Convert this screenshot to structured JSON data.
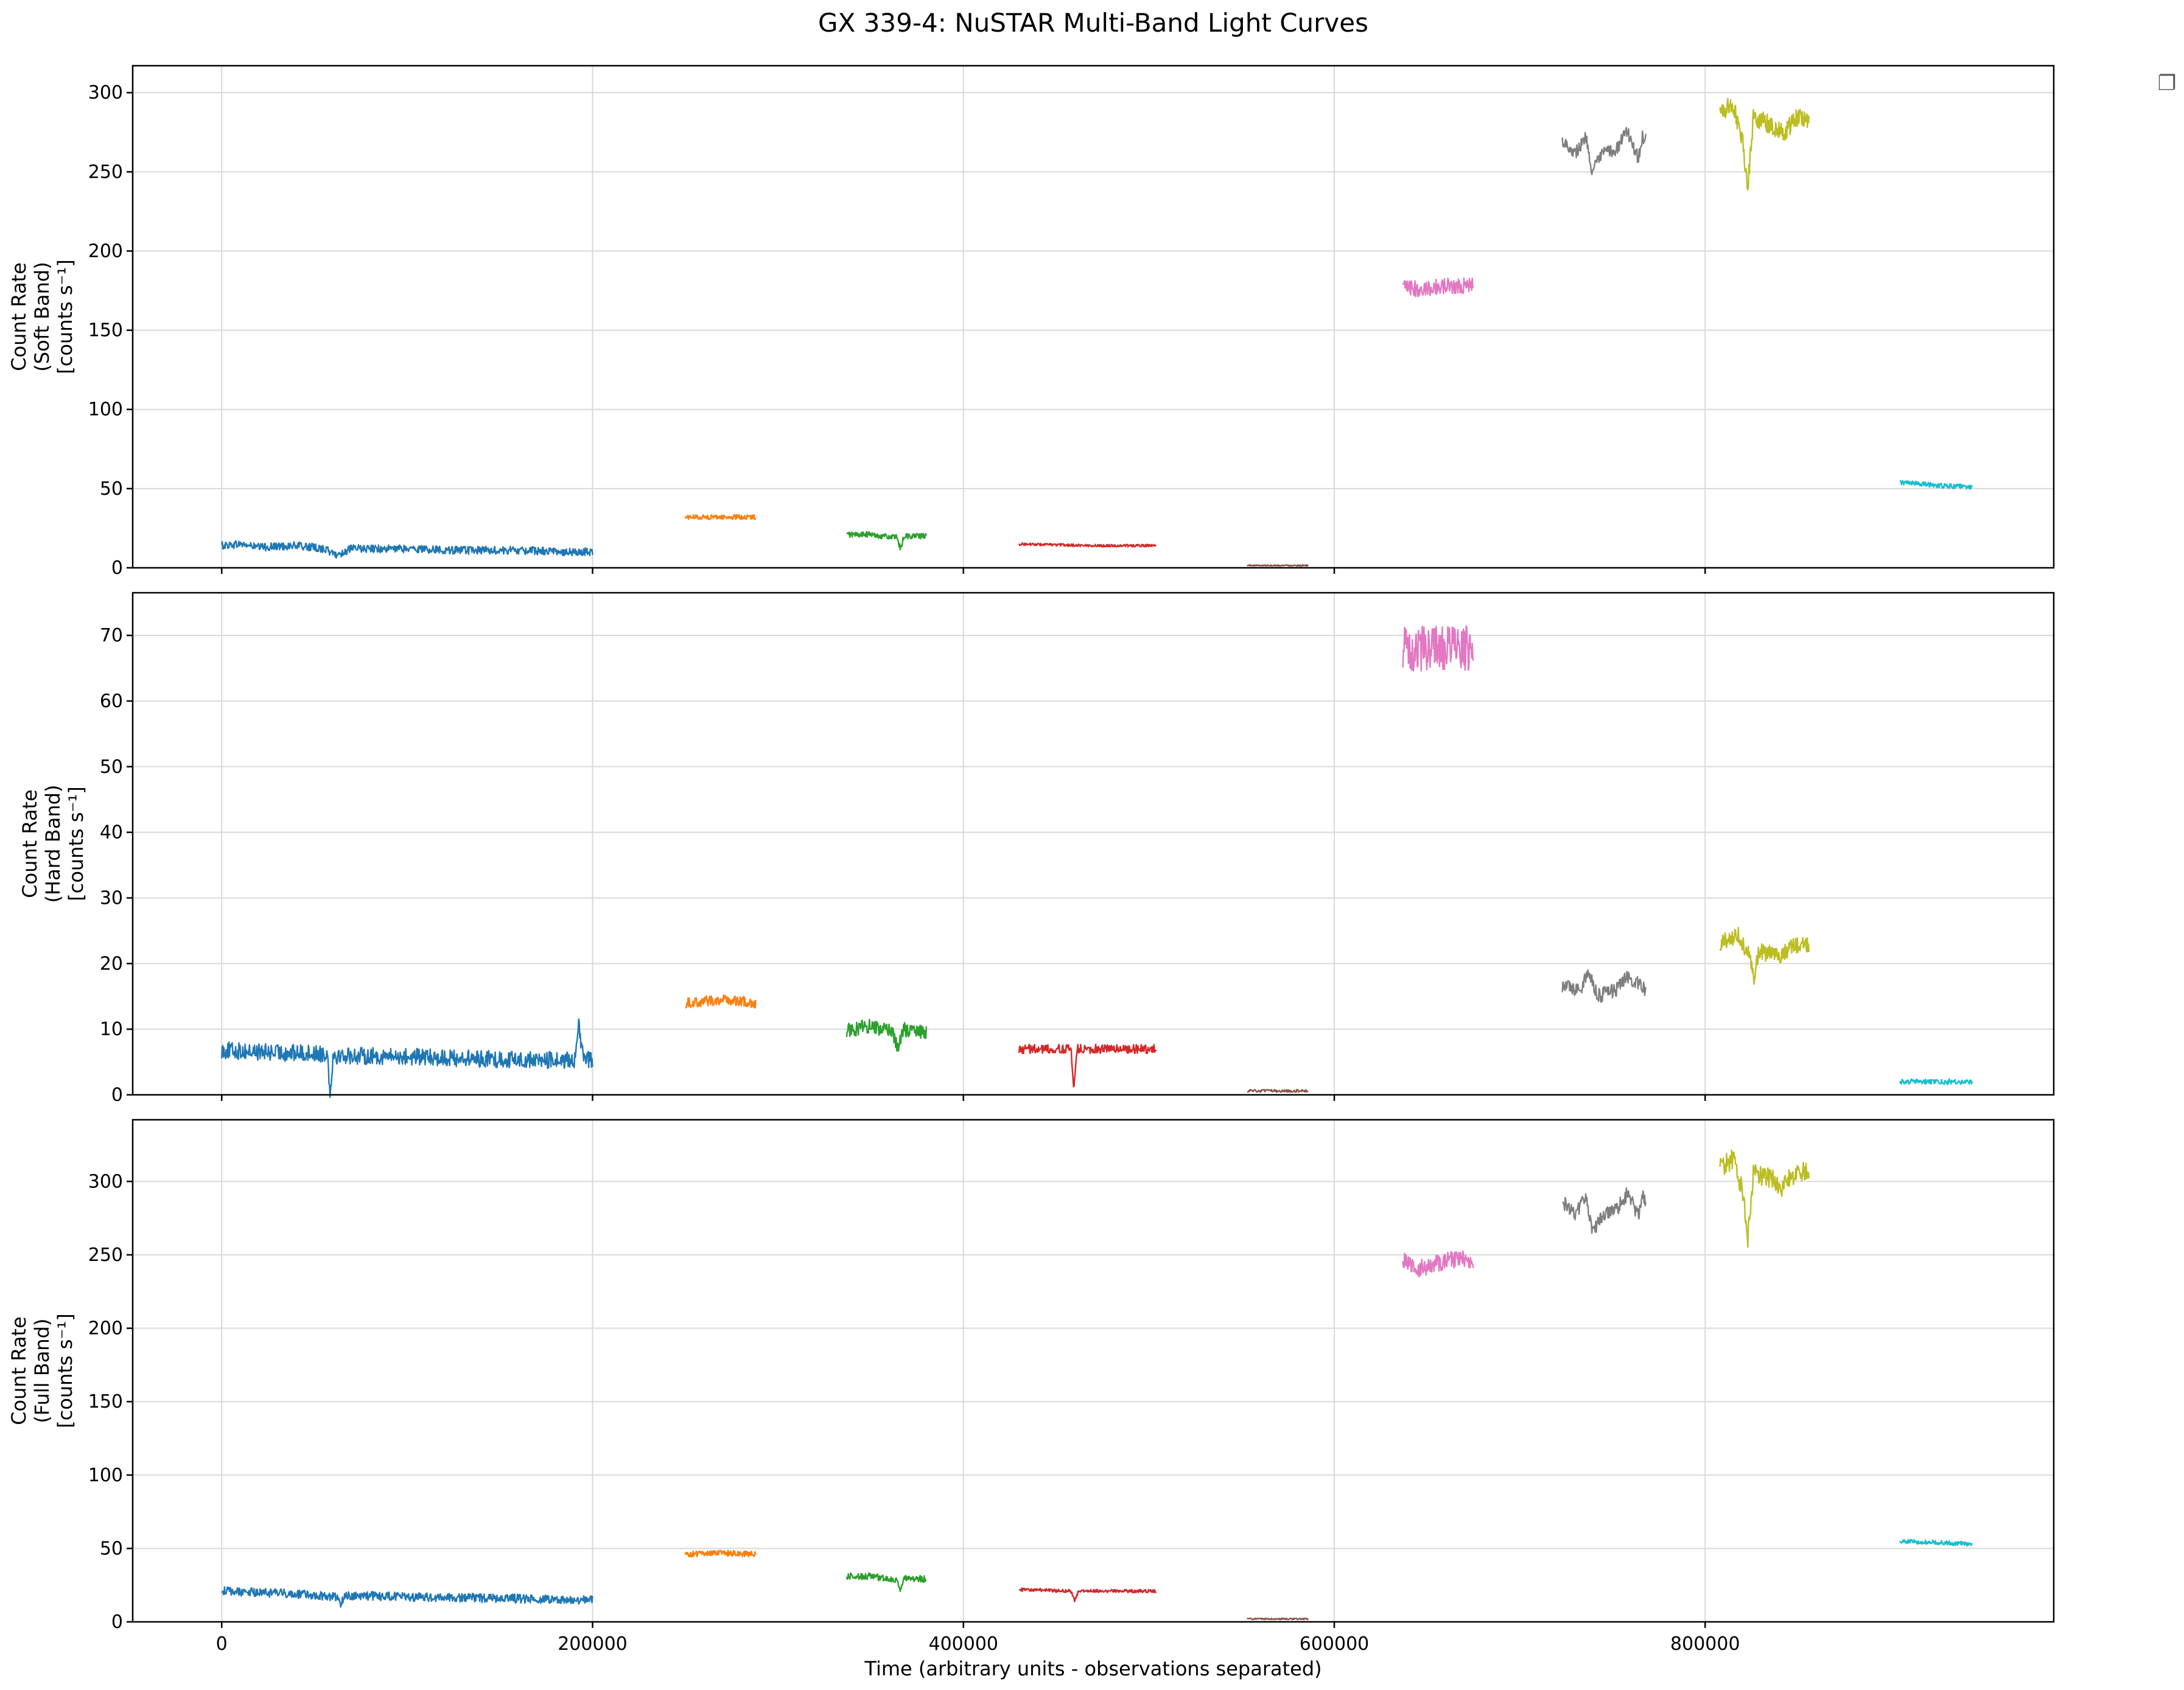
{
  "figure": {
    "title": "GX 339-4: NuSTAR Multi-Band Light Curves",
    "xlabel": "Time (arbitrary units - observations separated)",
    "legend_marker": "❐"
  },
  "chart_data": [
    {
      "type": "line",
      "panel": "soft",
      "ylabel_lines": [
        "Count Rate",
        "(Soft Band)",
        "[counts s⁻¹]"
      ],
      "xlim": [
        -48000,
        988000
      ],
      "ylim": [
        0,
        317
      ],
      "xticks": [
        0,
        200000,
        400000,
        600000,
        800000
      ],
      "yticks": [
        0,
        50,
        100,
        150,
        200,
        250,
        300
      ],
      "grid": true,
      "series": [
        {
          "color": "#1f77b4",
          "x_start": 0,
          "x_end": 200000,
          "points": [
            [
              0,
              14
            ],
            [
              10000,
              15
            ],
            [
              20000,
              13
            ],
            [
              40000,
              14
            ],
            [
              55000,
              12
            ],
            [
              62000,
              8
            ],
            [
              70000,
              12
            ],
            [
              100000,
              12
            ],
            [
              130000,
              11
            ],
            [
              160000,
              11
            ],
            [
              190000,
              10
            ],
            [
              200000,
              10
            ]
          ],
          "noise": 2.5
        },
        {
          "color": "#ff7f0e",
          "x_start": 250000,
          "x_end": 288000,
          "points": [
            [
              250000,
              32
            ],
            [
              270000,
              32
            ],
            [
              288000,
              32
            ]
          ],
          "noise": 1.5
        },
        {
          "color": "#2ca02c",
          "x_start": 337000,
          "x_end": 380000,
          "points": [
            [
              337000,
              21
            ],
            [
              350000,
              21
            ],
            [
              364000,
              19
            ],
            [
              366000,
              12
            ],
            [
              368000,
              20
            ],
            [
              380000,
              20
            ]
          ],
          "noise": 1.8
        },
        {
          "color": "#d62728",
          "x_start": 430000,
          "x_end": 504000,
          "points": [
            [
              430000,
              15
            ],
            [
              470000,
              14
            ],
            [
              504000,
              14
            ]
          ],
          "noise": 0.8
        },
        {
          "color": "#8c564b",
          "x_start": 553000,
          "x_end": 586000,
          "points": [
            [
              553000,
              1.5
            ],
            [
              586000,
              1.5
            ]
          ],
          "noise": 0.4
        },
        {
          "color": "#e377c2",
          "x_start": 637000,
          "x_end": 675000,
          "points": [
            [
              637000,
              177
            ],
            [
              645000,
              176
            ],
            [
              660000,
              178
            ],
            [
              675000,
              178
            ]
          ],
          "noise": 5
        },
        {
          "color": "#7f7f7f",
          "x_start": 723000,
          "x_end": 768000,
          "points": [
            [
              723000,
              270
            ],
            [
              730000,
              262
            ],
            [
              736000,
              272
            ],
            [
              739000,
              250
            ],
            [
              745000,
              262
            ],
            [
              752000,
              264
            ],
            [
              758000,
              276
            ],
            [
              764000,
              258
            ],
            [
              766000,
              272
            ],
            [
              768000,
              270
            ]
          ],
          "noise": 4
        },
        {
          "color": "#bcbd22",
          "x_start": 808000,
          "x_end": 856000,
          "points": [
            [
              808000,
              288
            ],
            [
              815000,
              292
            ],
            [
              820000,
              272
            ],
            [
              823000,
              240
            ],
            [
              826000,
              285
            ],
            [
              835000,
              280
            ],
            [
              842000,
              274
            ],
            [
              850000,
              285
            ],
            [
              856000,
              282
            ]
          ],
          "noise": 6
        },
        {
          "color": "#17becf",
          "x_start": 905000,
          "x_end": 944000,
          "points": [
            [
              905000,
              54
            ],
            [
              925000,
              52
            ],
            [
              944000,
              51
            ]
          ],
          "noise": 1.5
        }
      ]
    },
    {
      "type": "line",
      "panel": "hard",
      "ylabel_lines": [
        "Count Rate",
        "(Hard Band)",
        "[counts s⁻¹]"
      ],
      "xlim": [
        -48000,
        988000
      ],
      "ylim": [
        0,
        76.5
      ],
      "xticks": [
        0,
        200000,
        400000,
        600000,
        800000
      ],
      "yticks": [
        0,
        10,
        20,
        30,
        40,
        50,
        60,
        70
      ],
      "grid": true,
      "series": [
        {
          "color": "#1f77b4",
          "x_start": 0,
          "x_end": 200000,
          "points": [
            [
              0,
              6.8
            ],
            [
              30000,
              6.4
            ],
            [
              57000,
              6.3
            ],
            [
              58500,
              0.2
            ],
            [
              60000,
              6
            ],
            [
              100000,
              5.8
            ],
            [
              150000,
              5.4
            ],
            [
              190000,
              5.2
            ],
            [
              192500,
              10.5
            ],
            [
              195000,
              5.4
            ],
            [
              200000,
              5.5
            ]
          ],
          "noise": 1.3
        },
        {
          "color": "#ff7f0e",
          "x_start": 250000,
          "x_end": 288000,
          "points": [
            [
              250000,
              14
            ],
            [
              270000,
              14.5
            ],
            [
              288000,
              14
            ]
          ],
          "noise": 0.8
        },
        {
          "color": "#2ca02c",
          "x_start": 337000,
          "x_end": 380000,
          "points": [
            [
              337000,
              9.8
            ],
            [
              350000,
              10.5
            ],
            [
              362000,
              9.5
            ],
            [
              364500,
              7
            ],
            [
              368000,
              10
            ],
            [
              380000,
              9.5
            ]
          ],
          "noise": 1.1
        },
        {
          "color": "#d62728",
          "x_start": 430000,
          "x_end": 504000,
          "points": [
            [
              430000,
              7
            ],
            [
              458000,
              7
            ],
            [
              459500,
              0
            ],
            [
              461000,
              7
            ],
            [
              504000,
              7
            ]
          ],
          "noise": 0.7
        },
        {
          "color": "#8c564b",
          "x_start": 553000,
          "x_end": 586000,
          "points": [
            [
              553000,
              0.6
            ],
            [
              586000,
              0.6
            ]
          ],
          "noise": 0.2
        },
        {
          "color": "#e377c2",
          "x_start": 637000,
          "x_end": 675000,
          "points": [
            [
              637000,
              68
            ],
            [
              655000,
              68
            ],
            [
              675000,
              68
            ]
          ],
          "noise": 3.5
        },
        {
          "color": "#7f7f7f",
          "x_start": 723000,
          "x_end": 768000,
          "points": [
            [
              723000,
              16.5
            ],
            [
              733000,
              16
            ],
            [
              737000,
              19
            ],
            [
              742000,
              15
            ],
            [
              752000,
              16
            ],
            [
              758000,
              18
            ],
            [
              768000,
              16
            ]
          ],
          "noise": 1.1
        },
        {
          "color": "#bcbd22",
          "x_start": 808000,
          "x_end": 856000,
          "points": [
            [
              808000,
              23
            ],
            [
              818000,
              24.5
            ],
            [
              824000,
              21
            ],
            [
              826000,
              17.5
            ],
            [
              829000,
              22
            ],
            [
              840000,
              21
            ],
            [
              850000,
              23
            ],
            [
              856000,
              23
            ]
          ],
          "noise": 1.3
        },
        {
          "color": "#17becf",
          "x_start": 905000,
          "x_end": 944000,
          "points": [
            [
              905000,
              2
            ],
            [
              944000,
              2
            ]
          ],
          "noise": 0.4
        }
      ]
    },
    {
      "type": "line",
      "panel": "full",
      "ylabel_lines": [
        "Count Rate",
        "(Full Band)",
        "[counts s⁻¹]"
      ],
      "xlim": [
        -48000,
        988000
      ],
      "ylim": [
        0,
        342
      ],
      "xticks": [
        0,
        200000,
        400000,
        600000,
        800000
      ],
      "xtick_labels": [
        "0",
        "200000",
        "400000",
        "600000",
        "800000"
      ],
      "yticks": [
        0,
        50,
        100,
        150,
        200,
        250,
        300
      ],
      "grid": true,
      "series": [
        {
          "color": "#1f77b4",
          "x_start": 0,
          "x_end": 200000,
          "points": [
            [
              0,
              21
            ],
            [
              20000,
              20
            ],
            [
              40000,
              19
            ],
            [
              62000,
              17
            ],
            [
              64000,
              11
            ],
            [
              66000,
              18
            ],
            [
              100000,
              17
            ],
            [
              150000,
              16
            ],
            [
              200000,
              15
            ]
          ],
          "noise": 3
        },
        {
          "color": "#ff7f0e",
          "x_start": 250000,
          "x_end": 288000,
          "points": [
            [
              250000,
              46
            ],
            [
              270000,
              47
            ],
            [
              288000,
              46
            ]
          ],
          "noise": 2
        },
        {
          "color": "#2ca02c",
          "x_start": 337000,
          "x_end": 380000,
          "points": [
            [
              337000,
              31
            ],
            [
              350000,
              31
            ],
            [
              364000,
              28
            ],
            [
              366000,
              20
            ],
            [
              368000,
              30
            ],
            [
              380000,
              29
            ]
          ],
          "noise": 2.3
        },
        {
          "color": "#d62728",
          "x_start": 430000,
          "x_end": 504000,
          "points": [
            [
              430000,
              22
            ],
            [
              458000,
              21
            ],
            [
              460000,
              14
            ],
            [
              462000,
              21
            ],
            [
              504000,
              21
            ]
          ],
          "noise": 1.1
        },
        {
          "color": "#8c564b",
          "x_start": 553000,
          "x_end": 586000,
          "points": [
            [
              553000,
              2
            ],
            [
              586000,
              2
            ]
          ],
          "noise": 0.5
        },
        {
          "color": "#e377c2",
          "x_start": 637000,
          "x_end": 675000,
          "points": [
            [
              637000,
              246
            ],
            [
              645000,
              240
            ],
            [
              660000,
              246
            ],
            [
              675000,
              247
            ]
          ],
          "noise": 6
        },
        {
          "color": "#7f7f7f",
          "x_start": 723000,
          "x_end": 768000,
          "points": [
            [
              723000,
              286
            ],
            [
              730000,
              278
            ],
            [
              736000,
              290
            ],
            [
              739000,
              264
            ],
            [
              745000,
              278
            ],
            [
              752000,
              280
            ],
            [
              758000,
              292
            ],
            [
              764000,
              276
            ],
            [
              766000,
              290
            ],
            [
              768000,
              287
            ]
          ],
          "noise": 5
        },
        {
          "color": "#bcbd22",
          "x_start": 808000,
          "x_end": 856000,
          "points": [
            [
              808000,
              310
            ],
            [
              815000,
              315
            ],
            [
              820000,
              295
            ],
            [
              823000,
              262
            ],
            [
              826000,
              306
            ],
            [
              835000,
              302
            ],
            [
              842000,
              296
            ],
            [
              850000,
              308
            ],
            [
              856000,
              305
            ]
          ],
          "noise": 7
        },
        {
          "color": "#17becf",
          "x_start": 905000,
          "x_end": 944000,
          "points": [
            [
              905000,
              55
            ],
            [
              925000,
              54
            ],
            [
              944000,
              53
            ]
          ],
          "noise": 1.5
        }
      ]
    }
  ]
}
